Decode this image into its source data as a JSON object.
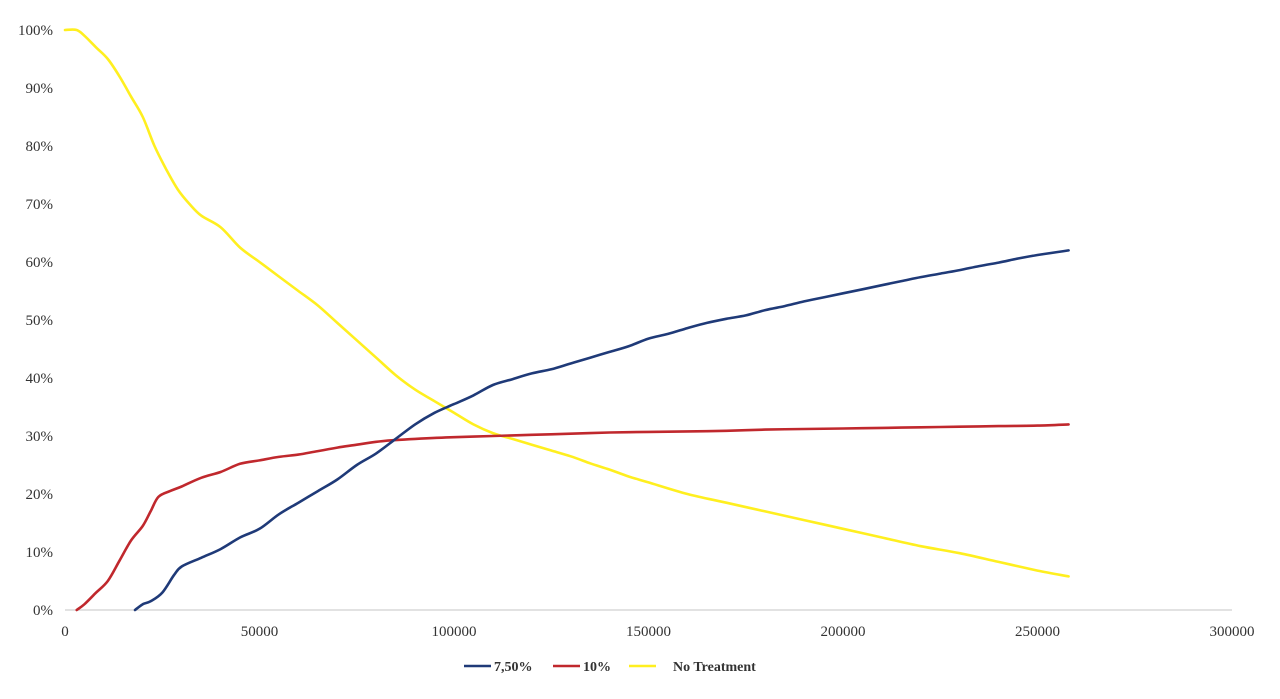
{
  "chart_data": {
    "type": "line",
    "title": "",
    "xlabel": "",
    "ylabel": "",
    "xlim": [
      0,
      300000
    ],
    "ylim": [
      0,
      100
    ],
    "x_ticks": [
      "0",
      "50000",
      "100000",
      "150000",
      "200000",
      "250000",
      "300000"
    ],
    "y_ticks": [
      "0%",
      "10%",
      "20%",
      "30%",
      "40%",
      "50%",
      "60%",
      "70%",
      "80%",
      "90%",
      "100%"
    ],
    "grid": false,
    "legend_position": "bottom",
    "series": [
      {
        "name": "7,50%",
        "color": "#1f3a78",
        "points": [
          [
            18000,
            0
          ],
          [
            20000,
            1
          ],
          [
            22000,
            1.5
          ],
          [
            25000,
            3
          ],
          [
            28000,
            6
          ],
          [
            30000,
            7.5
          ],
          [
            35000,
            9
          ],
          [
            40000,
            10.5
          ],
          [
            45000,
            12.5
          ],
          [
            50000,
            14
          ],
          [
            55000,
            16.5
          ],
          [
            60000,
            18.5
          ],
          [
            65000,
            20.5
          ],
          [
            70000,
            22.5
          ],
          [
            75000,
            25
          ],
          [
            80000,
            27
          ],
          [
            85000,
            29.5
          ],
          [
            90000,
            32
          ],
          [
            95000,
            34
          ],
          [
            100000,
            35.5
          ],
          [
            105000,
            37
          ],
          [
            110000,
            38.8
          ],
          [
            115000,
            39.8
          ],
          [
            120000,
            40.8
          ],
          [
            125000,
            41.5
          ],
          [
            130000,
            42.5
          ],
          [
            135000,
            43.5
          ],
          [
            140000,
            44.5
          ],
          [
            145000,
            45.5
          ],
          [
            150000,
            46.8
          ],
          [
            155000,
            47.6
          ],
          [
            160000,
            48.6
          ],
          [
            165000,
            49.5
          ],
          [
            170000,
            50.2
          ],
          [
            175000,
            50.8
          ],
          [
            180000,
            51.7
          ],
          [
            185000,
            52.4
          ],
          [
            190000,
            53.2
          ],
          [
            195000,
            53.9
          ],
          [
            200000,
            54.6
          ],
          [
            205000,
            55.3
          ],
          [
            210000,
            56
          ],
          [
            215000,
            56.7
          ],
          [
            220000,
            57.4
          ],
          [
            225000,
            58
          ],
          [
            230000,
            58.6
          ],
          [
            235000,
            59.3
          ],
          [
            240000,
            59.9
          ],
          [
            245000,
            60.6
          ],
          [
            250000,
            61.2
          ],
          [
            255000,
            61.7
          ],
          [
            258000,
            62
          ]
        ]
      },
      {
        "name": "10%",
        "color": "#c0282d",
        "points": [
          [
            3000,
            0
          ],
          [
            5000,
            1
          ],
          [
            8000,
            3
          ],
          [
            11000,
            5
          ],
          [
            14000,
            8.5
          ],
          [
            17000,
            12
          ],
          [
            20000,
            14.5
          ],
          [
            22000,
            17
          ],
          [
            24000,
            19.5
          ],
          [
            27000,
            20.5
          ],
          [
            30000,
            21.3
          ],
          [
            35000,
            22.8
          ],
          [
            40000,
            23.8
          ],
          [
            45000,
            25.2
          ],
          [
            50000,
            25.8
          ],
          [
            55000,
            26.4
          ],
          [
            60000,
            26.8
          ],
          [
            65000,
            27.4
          ],
          [
            70000,
            28
          ],
          [
            75000,
            28.5
          ],
          [
            80000,
            29
          ],
          [
            85000,
            29.3
          ],
          [
            90000,
            29.5
          ],
          [
            100000,
            29.8
          ],
          [
            110000,
            30
          ],
          [
            120000,
            30.2
          ],
          [
            130000,
            30.4
          ],
          [
            140000,
            30.6
          ],
          [
            150000,
            30.7
          ],
          [
            160000,
            30.8
          ],
          [
            170000,
            30.9
          ],
          [
            180000,
            31.1
          ],
          [
            190000,
            31.2
          ],
          [
            200000,
            31.3
          ],
          [
            210000,
            31.4
          ],
          [
            220000,
            31.5
          ],
          [
            230000,
            31.6
          ],
          [
            240000,
            31.7
          ],
          [
            250000,
            31.8
          ],
          [
            258000,
            32
          ]
        ]
      },
      {
        "name": "No Treatment",
        "color": "#ffef1f",
        "points": [
          [
            0,
            100
          ],
          [
            3000,
            100
          ],
          [
            5000,
            99
          ],
          [
            8000,
            97
          ],
          [
            11000,
            95
          ],
          [
            14000,
            92
          ],
          [
            17000,
            88.5
          ],
          [
            20000,
            85
          ],
          [
            23000,
            80
          ],
          [
            26000,
            76
          ],
          [
            29000,
            72.5
          ],
          [
            32000,
            70
          ],
          [
            35000,
            68
          ],
          [
            40000,
            66
          ],
          [
            45000,
            62.5
          ],
          [
            50000,
            60
          ],
          [
            55000,
            57.5
          ],
          [
            60000,
            55
          ],
          [
            65000,
            52.5
          ],
          [
            70000,
            49.5
          ],
          [
            75000,
            46.5
          ],
          [
            80000,
            43.5
          ],
          [
            85000,
            40.5
          ],
          [
            90000,
            38
          ],
          [
            95000,
            36
          ],
          [
            100000,
            34
          ],
          [
            105000,
            32
          ],
          [
            110000,
            30.5
          ],
          [
            115000,
            29.5
          ],
          [
            120000,
            28.5
          ],
          [
            125000,
            27.5
          ],
          [
            130000,
            26.5
          ],
          [
            135000,
            25.3
          ],
          [
            140000,
            24.2
          ],
          [
            145000,
            23
          ],
          [
            150000,
            22
          ],
          [
            160000,
            20
          ],
          [
            170000,
            18.5
          ],
          [
            180000,
            17
          ],
          [
            190000,
            15.5
          ],
          [
            200000,
            14
          ],
          [
            210000,
            12.5
          ],
          [
            220000,
            11
          ],
          [
            230000,
            9.8
          ],
          [
            240000,
            8.3
          ],
          [
            250000,
            6.8
          ],
          [
            258000,
            5.8
          ]
        ]
      }
    ]
  }
}
